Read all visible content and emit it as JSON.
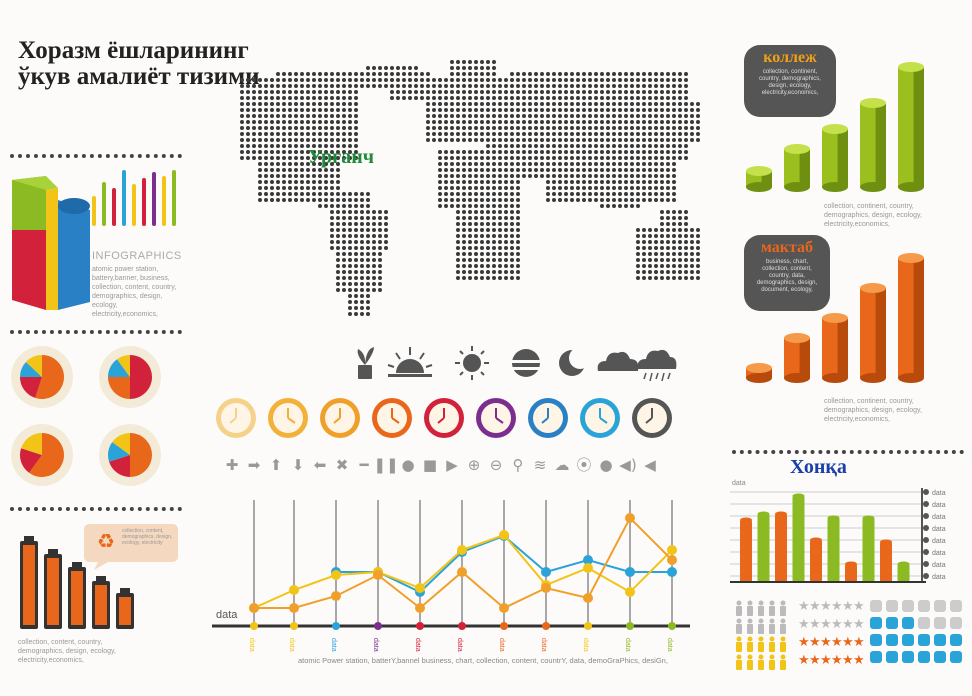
{
  "title": "Хоразм ёшларининг ўкув амалиёт тизими",
  "map_label": "Урганч",
  "infographics_heading": "INFOGRAPHICS",
  "infographics_text": "atomic power station, battery,banner, business, collection, content, country, demographics, design, ecology, electricity,economics,",
  "battery_caption": "collection, content, country, demographics, design, ecology, electricity,economics,",
  "recycle_bubble": "collection, content, demographics, design, ecology, electricity",
  "college": {
    "label": "коллеж",
    "bubble_text": "collection, continent, country, demographics, design, ecology, electricity,economics,",
    "caption": "collection, continent, country, demographics, design, ecology, electricity,economics,",
    "color": "#9abf1e"
  },
  "school": {
    "label": "мактаб",
    "bubble_text": "business, chart, collection, content, country, data, demographics, design, document, ecology,",
    "caption": "collection, continent, country, demographics, design, ecology, electricity,economics,",
    "color": "#e8671a"
  },
  "khonka": {
    "label": "Хонқа",
    "axis_label": "data",
    "tick_label": "data"
  },
  "line_chart": {
    "axis_label": "data",
    "point_label": "data",
    "footer_text": "atomic Power station, batterY,bannel business, chart, collection, content, countrY, data, demoGraPhics, desiGn,"
  },
  "colors": {
    "yellow": "#f2c418",
    "orange": "#e8671a",
    "red": "#d2213a",
    "blue": "#2aa3d8",
    "green": "#8bba22",
    "purple": "#7b2e8e",
    "grey": "#777777"
  },
  "icons": {
    "weather": [
      "plant-icon",
      "sunrise-icon",
      "sun-icon",
      "sunset-icon",
      "moon-icon",
      "cloud-icon",
      "rain-icon"
    ],
    "controls": [
      "plus-icon",
      "arrow-right-icon",
      "arrow-up-icon",
      "arrow-down-icon",
      "arrow-left-icon",
      "close-icon",
      "minus-icon",
      "pause-icon",
      "record-icon",
      "stop-icon",
      "play-icon",
      "zoom-in-icon",
      "zoom-out-icon",
      "search-icon",
      "wifi-icon",
      "cloud-icon",
      "rss-icon",
      "circle-icon",
      "volume-icon",
      "speaker-icon"
    ]
  }
}
